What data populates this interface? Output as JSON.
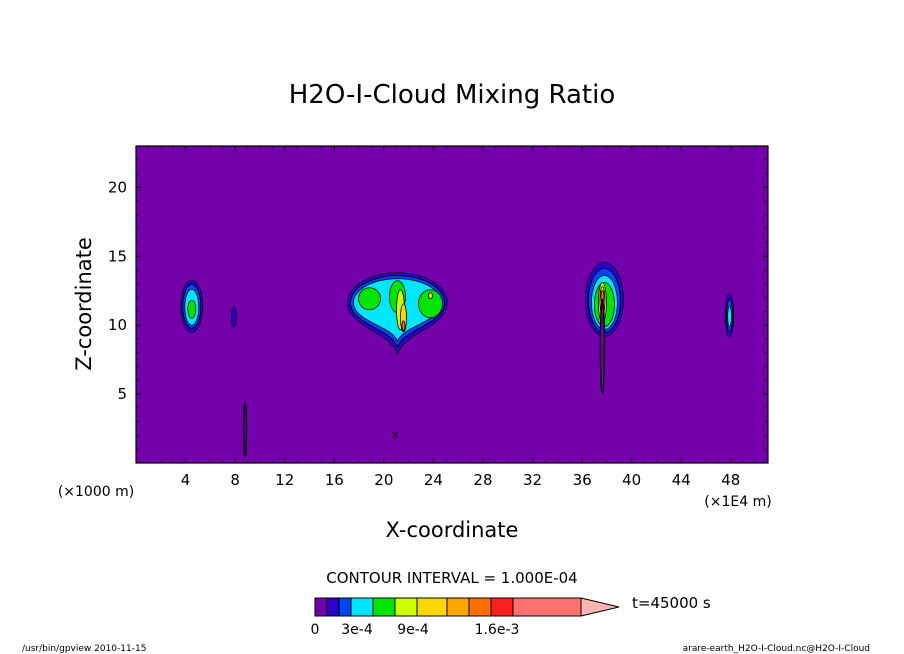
{
  "chart_data": {
    "type": "heatmap",
    "subtype": "filled-contour",
    "title": "H2O-I-Cloud Mixing Ratio",
    "xlabel": "X-coordinate",
    "ylabel": "Z-coordinate",
    "x_unit_left": "(×1000 m)",
    "x_unit_right": "(×1E4 m)",
    "xlim": [
      0,
      51
    ],
    "ylim": [
      0,
      23
    ],
    "x_ticks": [
      4,
      8,
      12,
      16,
      20,
      24,
      28,
      32,
      36,
      40,
      44,
      48
    ],
    "y_ticks": [
      5,
      10,
      15,
      20
    ],
    "grid": false,
    "background_level_color": "#7400AC",
    "contour_interval_text": "CONTOUR INTERVAL = 1.000E-04",
    "time_label": "t=45000 s",
    "colorbar": {
      "colors": [
        "#7400AC",
        "#2D00CC",
        "#0046F5",
        "#00E6FF",
        "#00E600",
        "#CCFF00",
        "#FFD700",
        "#FFA500",
        "#FF6E00",
        "#FF1E1E",
        "#FF7070",
        "#FFB4B4"
      ],
      "tick_labels": [
        "0",
        "3e-4",
        "9e-4",
        "1.6e-3"
      ]
    },
    "features": [
      {
        "x": 4.5,
        "z": 11.3,
        "max_level": 5
      },
      {
        "x": 7.9,
        "z": 10.6,
        "max_level": 2
      },
      {
        "x": 8.8,
        "z": 2.4,
        "max_level": 1
      },
      {
        "x": 21.1,
        "z": 11.7,
        "max_level": 8
      },
      {
        "x": 37.8,
        "z": 11.5,
        "max_level": 8
      },
      {
        "x": 47.9,
        "z": 10.7,
        "max_level": 3
      }
    ],
    "annotation": "x"
  },
  "footer": {
    "left": "/usr/bin/gpview   2010-11-15",
    "right": "arare-earth_H2O-I-Cloud.nc@H2O-I-Cloud"
  }
}
